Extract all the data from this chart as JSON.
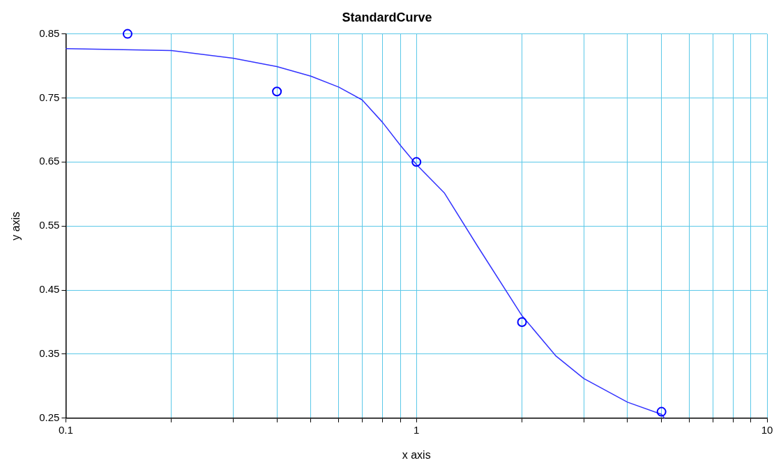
{
  "chart_data": {
    "type": "scatter",
    "title": "StandardCurve",
    "xlabel": "x axis",
    "ylabel": "y axis",
    "log": "x",
    "grid": true,
    "legend": false,
    "marker": "circle",
    "xlim": [
      0.1,
      10
    ],
    "ylim": [
      0.25,
      0.85
    ],
    "xticks": [
      0.1,
      {
        "value": 0.2,
        "label": null
      },
      {
        "value": 0.3,
        "label": null
      },
      {
        "value": 0.4,
        "label": null
      },
      {
        "value": 0.5,
        "label": null
      },
      {
        "value": 0.6,
        "label": null
      },
      {
        "value": 0.7,
        "label": null
      },
      {
        "value": 0.8,
        "label": null
      },
      {
        "value": 0.9,
        "label": null
      },
      1,
      {
        "value": 2,
        "label": null
      },
      {
        "value": 3,
        "label": null
      },
      {
        "value": 4,
        "label": null
      },
      {
        "value": 5,
        "label": null
      },
      {
        "value": 6,
        "label": null
      },
      {
        "value": 7,
        "label": null
      },
      {
        "value": 8,
        "label": null
      },
      {
        "value": 9,
        "label": null
      },
      10
    ],
    "yticks": [
      0.25,
      0.35,
      0.45,
      0.55,
      0.65,
      0.75,
      0.85
    ],
    "series": [
      {
        "color": "#0000ff",
        "x": [
          0.15,
          0.4,
          1,
          2,
          5
        ],
        "values": [
          0.85,
          0.76,
          0.65,
          0.4,
          0.26
        ]
      },
      {
        "type": "line",
        "color": "#3333ff",
        "marker": "none",
        "x": [
          0.1,
          0.2,
          0.3,
          0.4,
          0.5,
          0.6,
          0.7,
          0.8,
          0.9,
          1,
          1.2,
          1.5,
          2,
          2.5,
          3,
          4,
          5,
          5.1
        ],
        "values": [
          0.827,
          0.824,
          0.812,
          0.799,
          0.784,
          0.767,
          0.747,
          0.712,
          0.676,
          0.646,
          0.602,
          0.517,
          0.41,
          0.347,
          0.312,
          0.275,
          0.256,
          0.25
        ]
      }
    ]
  }
}
